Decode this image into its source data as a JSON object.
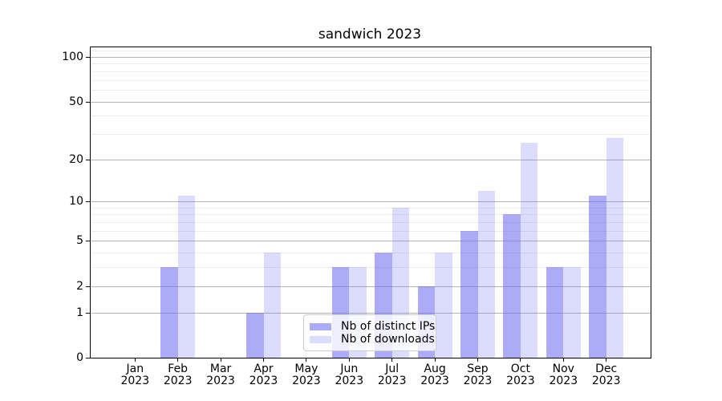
{
  "chart_data": {
    "type": "bar",
    "title": "sandwich 2023",
    "categories": [
      "Jan 2023",
      "Feb 2023",
      "Mar 2023",
      "Apr 2023",
      "May 2023",
      "Jun 2023",
      "Jul 2023",
      "Aug 2023",
      "Sep 2023",
      "Oct 2023",
      "Nov 2023",
      "Dec 2023"
    ],
    "series": [
      {
        "name": "Nb of distinct IPs",
        "color": "rgba(106,106,243,0.56)",
        "values": [
          0,
          3,
          0,
          1,
          0,
          3,
          4,
          2,
          6,
          8,
          3,
          11
        ]
      },
      {
        "name": "Nb of downloads",
        "color": "rgba(106,106,243,0.235)",
        "values": [
          0,
          11,
          0,
          4,
          0,
          3,
          9,
          4,
          12,
          26,
          3,
          28
        ]
      }
    ],
    "xlabel": "",
    "ylabel": "",
    "yscale": "log10(1+value)",
    "ylim": [
      0,
      116
    ],
    "yticks_major": [
      0,
      1,
      2,
      5,
      10,
      20,
      50,
      100
    ],
    "yticks_minor": [
      3,
      4,
      6,
      7,
      8,
      9,
      30,
      40,
      60,
      70,
      80,
      90,
      110
    ],
    "grid": true,
    "legend_position": "lower center inside"
  }
}
